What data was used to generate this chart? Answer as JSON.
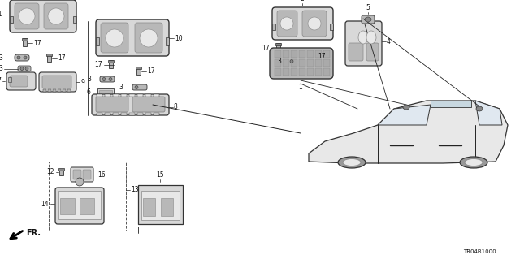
{
  "background_color": "#ffffff",
  "diagram_code": "TR04B1000",
  "fig_width": 6.4,
  "fig_height": 3.19,
  "dpi": 100,
  "line_color": "#222222",
  "label_color": "#111111",
  "part_fill": "#d8d8d8",
  "part_fill2": "#b8b8b8",
  "part_fill3": "#e8e8e8",
  "part_dark": "#888888",
  "part_stroke": "#333333"
}
